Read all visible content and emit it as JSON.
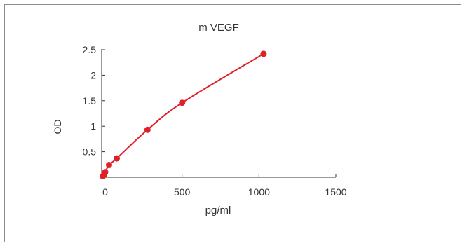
{
  "chart_data": {
    "type": "scatter",
    "title": "m VEGF",
    "xlabel": "pg/ml",
    "ylabel": "OD",
    "xlim": [
      -20,
      1500
    ],
    "ylim": [
      0,
      2.5
    ],
    "x_ticks": [
      0,
      500,
      1000,
      1500
    ],
    "x_tick_labels": [
      "0",
      "500",
      "1000",
      "1500"
    ],
    "y_ticks": [
      0.5,
      1,
      1.5,
      2,
      2.5
    ],
    "y_tick_labels": [
      "0.5",
      "1",
      "1.5",
      "2",
      "2.5"
    ],
    "grid": false,
    "legend": "none",
    "colors": {
      "series": "#e02028",
      "axis": "#333333",
      "text": "#333333"
    },
    "series": [
      {
        "x": [
          -15,
          -10,
          -5,
          0,
          25,
          75,
          275,
          500,
          1030
        ],
        "y": [
          0.02,
          0.04,
          0.07,
          0.1,
          0.24,
          0.37,
          0.93,
          1.46,
          2.42
        ],
        "fit": "curve"
      }
    ]
  }
}
